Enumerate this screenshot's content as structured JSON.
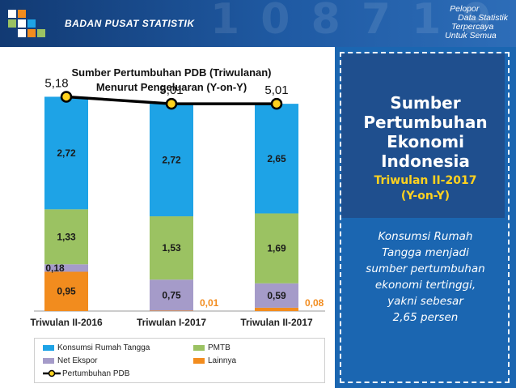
{
  "header": {
    "org_name": "BADAN PUSAT STATISTIK",
    "tagline": [
      "Pelopor",
      "Data Statistik",
      "Terpercaya",
      "Untuk Semua"
    ],
    "bg_numbers": "1 0 8 7 1 9"
  },
  "chart_data": {
    "type": "bar",
    "stacked": true,
    "title": [
      "Sumber Pertumbuhan PDB (Triwulanan)",
      "Menurut Pengeluaran (Y-on-Y)"
    ],
    "categories": [
      "Triwulan II-2016",
      "Triwulan I-2017",
      "Triwulan II-2017"
    ],
    "series": [
      {
        "name": "Lainnya",
        "color": "#f28c1e",
        "values": [
          0.95,
          0.01,
          0.08
        ],
        "labels": [
          "0,95",
          "0,01",
          "0,08"
        ]
      },
      {
        "name": "Net Ekspor",
        "color": "#a59bc9",
        "values": [
          0.18,
          0.75,
          0.59
        ],
        "labels": [
          "0,18",
          "0,75",
          "0,59"
        ]
      },
      {
        "name": "PMTB",
        "color": "#9bc262",
        "values": [
          1.33,
          1.53,
          1.69
        ],
        "labels": [
          "1,33",
          "1,53",
          "1,69"
        ]
      },
      {
        "name": "Konsumsi Rumah Tangga",
        "color": "#1ea3e6",
        "values": [
          2.72,
          2.72,
          2.65
        ],
        "labels": [
          "2,72",
          "2,72",
          "2,65"
        ]
      }
    ],
    "line": {
      "name": "Pertumbuhan PDB",
      "color": "#000000",
      "marker_color": "#ffd21f",
      "values": [
        5.18,
        5.01,
        5.01
      ],
      "labels": [
        "5,18",
        "5,01",
        "5,01"
      ]
    },
    "legend": {
      "position": "bottom",
      "entries": [
        {
          "name": "Konsumsi Rumah Tangga",
          "color": "#1ea3e6",
          "kind": "box"
        },
        {
          "name": "PMTB",
          "color": "#9bc262",
          "kind": "box"
        },
        {
          "name": "Net Ekspor",
          "color": "#a59bc9",
          "kind": "box"
        },
        {
          "name": "Lainnya",
          "color": "#f28c1e",
          "kind": "box"
        },
        {
          "name": "Pertumbuhan PDB",
          "color": "#000000",
          "kind": "line"
        }
      ]
    },
    "ylim": [
      0,
      5.6
    ],
    "grid": false
  },
  "panel": {
    "title_lines": [
      "Sumber",
      "Pertumbuhan",
      "Ekonomi",
      "Indonesia"
    ],
    "subtitle_lines": [
      "Triwulan II-2017",
      "(Y-on-Y)"
    ],
    "body_lines": [
      "Konsumsi Rumah",
      "Tangga menjadi",
      "sumber pertumbuhan",
      "ekonomi tertinggi,",
      "yakni sebesar",
      "2,65 persen"
    ]
  },
  "colors": {
    "header": "#1a4b8c",
    "panel": "#1b66b1",
    "panel_dark": "#1f4f8e",
    "accent": "#ffd21f"
  }
}
